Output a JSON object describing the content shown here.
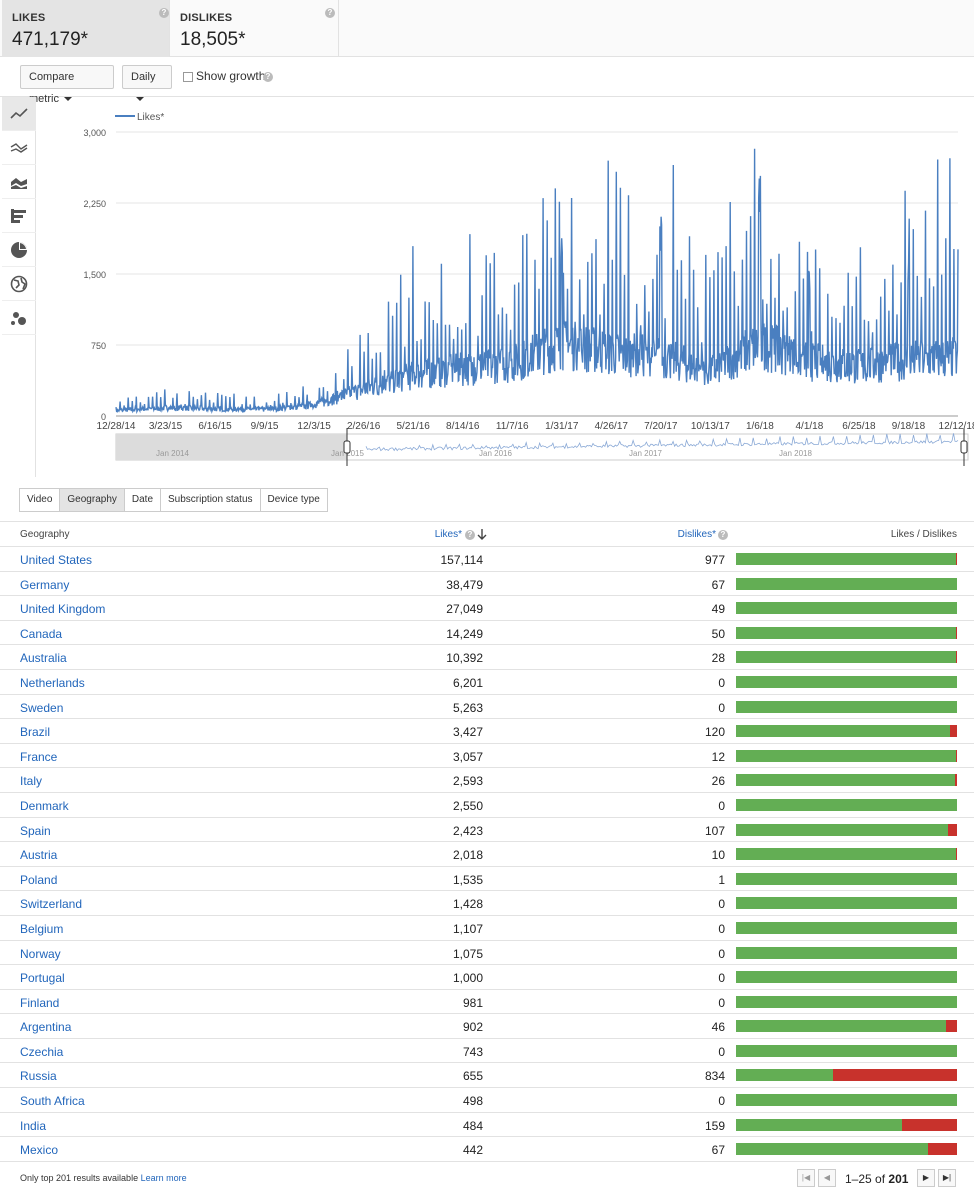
{
  "metrics": [
    {
      "name": "LIKES",
      "value": "471,179*",
      "active": true
    },
    {
      "name": "DISLIKES",
      "value": "18,505*",
      "active": false
    }
  ],
  "toolbar": {
    "compare_label": "Compare metric",
    "interval_label": "Daily",
    "growth_label": "Show growth"
  },
  "side_tools": [
    "line-chart-icon",
    "multi-line-icon",
    "stacked-area-icon",
    "bar-chart-icon",
    "pie-chart-icon",
    "globe-map-icon",
    "bubble-chart-icon"
  ],
  "chart_data": {
    "type": "line",
    "legend": "Likes*",
    "ylim": [
      0,
      3000
    ],
    "yticks": [
      "3,000",
      "2,250",
      "1,500",
      "750",
      "0"
    ],
    "xticks": [
      "12/28/14",
      "3/23/15",
      "6/16/15",
      "9/9/15",
      "12/3/15",
      "2/26/16",
      "5/21/16",
      "8/14/16",
      "11/7/16",
      "1/31/17",
      "4/26/17",
      "7/20/17",
      "10/13/17",
      "1/6/18",
      "4/1/18",
      "6/25/18",
      "9/18/18",
      "12/12/18"
    ],
    "overview_labels": [
      "Jan 2014",
      "Jan 2015",
      "Jan 2016",
      "Jan 2017",
      "Jan 2018"
    ],
    "color": "#4a7fc0",
    "series": [
      {
        "name": "Likes*",
        "x": [
          "12/28/14",
          "3/23/15",
          "6/16/15",
          "9/9/15",
          "12/3/15",
          "2/26/16",
          "5/21/16",
          "8/14/16",
          "11/7/16",
          "1/31/17",
          "4/26/17",
          "7/20/17",
          "10/13/17",
          "1/6/18",
          "4/1/18",
          "6/25/18",
          "9/18/18",
          "12/12/18"
        ],
        "values": [
          60,
          90,
          80,
          70,
          120,
          300,
          450,
          520,
          580,
          800,
          700,
          650,
          500,
          800,
          600,
          550,
          620,
          650
        ],
        "peaks": [
          {
            "x": "1/31/17",
            "value": 2050
          },
          {
            "x": "7/20/17",
            "value": 2130
          },
          {
            "x": "1/6/18",
            "value": 2560
          },
          {
            "x": "4/1/18",
            "value": 1550
          },
          {
            "x": "9/18/18",
            "value": 1750
          }
        ]
      }
    ]
  },
  "tabs": [
    {
      "label": "Video",
      "active": false
    },
    {
      "label": "Geography",
      "active": true
    },
    {
      "label": "Date",
      "active": false
    },
    {
      "label": "Subscription status",
      "active": false
    },
    {
      "label": "Device type",
      "active": false
    }
  ],
  "table": {
    "headers": {
      "geo": "Geography",
      "likes": "Likes*",
      "dislikes": "Dislikes*",
      "ratio": "Likes / Dislikes"
    },
    "rows": [
      {
        "country": "United States",
        "likes": "157,114",
        "dislikes": "977",
        "ratio": 0.9938
      },
      {
        "country": "Germany",
        "likes": "38,479",
        "dislikes": "67",
        "ratio": 0.9983
      },
      {
        "country": "United Kingdom",
        "likes": "27,049",
        "dislikes": "49",
        "ratio": 0.9982
      },
      {
        "country": "Canada",
        "likes": "14,249",
        "dislikes": "50",
        "ratio": 0.9965
      },
      {
        "country": "Australia",
        "likes": "10,392",
        "dislikes": "28",
        "ratio": 0.9973
      },
      {
        "country": "Netherlands",
        "likes": "6,201",
        "dislikes": "0",
        "ratio": 1.0
      },
      {
        "country": "Sweden",
        "likes": "5,263",
        "dislikes": "0",
        "ratio": 1.0
      },
      {
        "country": "Brazil",
        "likes": "3,427",
        "dislikes": "120",
        "ratio": 0.9662
      },
      {
        "country": "France",
        "likes": "3,057",
        "dislikes": "12",
        "ratio": 0.9961
      },
      {
        "country": "Italy",
        "likes": "2,593",
        "dislikes": "26",
        "ratio": 0.9901
      },
      {
        "country": "Denmark",
        "likes": "2,550",
        "dislikes": "0",
        "ratio": 1.0
      },
      {
        "country": "Spain",
        "likes": "2,423",
        "dislikes": "107",
        "ratio": 0.9577
      },
      {
        "country": "Austria",
        "likes": "2,018",
        "dislikes": "10",
        "ratio": 0.9951
      },
      {
        "country": "Poland",
        "likes": "1,535",
        "dislikes": "1",
        "ratio": 0.9993
      },
      {
        "country": "Switzerland",
        "likes": "1,428",
        "dislikes": "0",
        "ratio": 1.0
      },
      {
        "country": "Belgium",
        "likes": "1,107",
        "dislikes": "0",
        "ratio": 1.0
      },
      {
        "country": "Norway",
        "likes": "1,075",
        "dislikes": "0",
        "ratio": 1.0
      },
      {
        "country": "Portugal",
        "likes": "1,000",
        "dislikes": "0",
        "ratio": 1.0
      },
      {
        "country": "Finland",
        "likes": "981",
        "dislikes": "0",
        "ratio": 1.0
      },
      {
        "country": "Argentina",
        "likes": "902",
        "dislikes": "46",
        "ratio": 0.9515
      },
      {
        "country": "Czechia",
        "likes": "743",
        "dislikes": "0",
        "ratio": 1.0
      },
      {
        "country": "Russia",
        "likes": "655",
        "dislikes": "834",
        "ratio": 0.4399
      },
      {
        "country": "South Africa",
        "likes": "498",
        "dislikes": "0",
        "ratio": 1.0
      },
      {
        "country": "India",
        "likes": "484",
        "dislikes": "159",
        "ratio": 0.7527
      },
      {
        "country": "Mexico",
        "likes": "442",
        "dislikes": "67",
        "ratio": 0.8684
      }
    ]
  },
  "footer": {
    "note": "Only top 201 results available",
    "learn_more": "Learn more",
    "range": "1–25",
    "of": "of",
    "total": "201"
  },
  "colors": {
    "likes_bar": "#63ae54",
    "dislikes_bar": "#c8322c",
    "link": "#2266bb"
  }
}
